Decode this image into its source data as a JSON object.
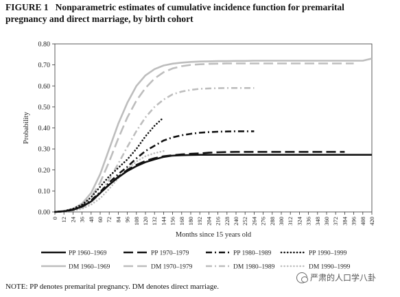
{
  "figure": {
    "label": "FIGURE 1",
    "title": "Nonparametric estimates of cumulative incidence function for premarital pregnancy and direct marriage, by birth cohort",
    "note": "NOTE: PP denotes premarital pregnancy. DM denotes direct marriage.",
    "watermark": "严肃的人口学八卦"
  },
  "chart_data": {
    "type": "line",
    "xlabel": "Months since 15 years old",
    "ylabel": "Probability",
    "xlim": [
      0,
      420
    ],
    "ylim": [
      0,
      0.8
    ],
    "xticks": [
      0,
      12,
      24,
      36,
      48,
      60,
      72,
      84,
      96,
      108,
      120,
      132,
      144,
      156,
      168,
      180,
      192,
      204,
      216,
      228,
      240,
      252,
      264,
      276,
      288,
      300,
      312,
      324,
      336,
      348,
      360,
      372,
      384,
      396,
      408,
      420
    ],
    "yticks": [
      "0.00",
      "0.10",
      "0.20",
      "0.30",
      "0.40",
      "0.50",
      "0.60",
      "0.70",
      "0.80"
    ],
    "grid": false,
    "legend_position": "bottom",
    "series": [
      {
        "name": "PP 1960–1969",
        "color": "#111111",
        "style": "solid",
        "x": [
          0,
          12,
          24,
          36,
          48,
          60,
          72,
          84,
          96,
          108,
          120,
          132,
          144,
          156,
          168,
          180,
          192,
          204,
          216,
          228,
          240,
          252,
          264,
          276,
          288,
          300,
          312,
          324,
          336,
          348,
          360,
          372,
          384,
          396,
          408,
          420
        ],
        "y": [
          0,
          0.003,
          0.01,
          0.025,
          0.05,
          0.09,
          0.13,
          0.165,
          0.195,
          0.218,
          0.237,
          0.25,
          0.262,
          0.268,
          0.27,
          0.271,
          0.272,
          0.272,
          0.272,
          0.272,
          0.272,
          0.272,
          0.272,
          0.272,
          0.272,
          0.272,
          0.272,
          0.272,
          0.272,
          0.272,
          0.272,
          0.272,
          0.272,
          0.272,
          0.272,
          0.272
        ]
      },
      {
        "name": "PP 1970–1979",
        "color": "#111111",
        "style": "longdash",
        "x": [
          0,
          12,
          24,
          36,
          48,
          60,
          72,
          84,
          96,
          108,
          120,
          132,
          144,
          156,
          168,
          180,
          192,
          204,
          216,
          228,
          240,
          252,
          264,
          276,
          288,
          300,
          312,
          324,
          336,
          348,
          360,
          372,
          384
        ],
        "y": [
          0,
          0.003,
          0.01,
          0.025,
          0.05,
          0.09,
          0.13,
          0.168,
          0.2,
          0.224,
          0.243,
          0.256,
          0.265,
          0.27,
          0.274,
          0.277,
          0.279,
          0.282,
          0.284,
          0.285,
          0.286,
          0.286,
          0.286,
          0.286,
          0.286,
          0.286,
          0.286,
          0.286,
          0.286,
          0.286,
          0.286,
          0.286,
          0.286
        ]
      },
      {
        "name": "PP 1980–1989",
        "color": "#111111",
        "style": "dashdot",
        "x": [
          0,
          12,
          24,
          36,
          48,
          60,
          72,
          84,
          96,
          108,
          120,
          132,
          144,
          156,
          168,
          180,
          192,
          204,
          216,
          228,
          240,
          252,
          264
        ],
        "y": [
          0,
          0.003,
          0.012,
          0.028,
          0.055,
          0.095,
          0.14,
          0.18,
          0.215,
          0.255,
          0.29,
          0.315,
          0.34,
          0.355,
          0.365,
          0.372,
          0.377,
          0.38,
          0.382,
          0.383,
          0.384,
          0.384,
          0.384
        ]
      },
      {
        "name": "PP 1990–1999",
        "color": "#111111",
        "style": "dotted",
        "x": [
          0,
          12,
          24,
          36,
          48,
          60,
          72,
          84,
          96,
          108,
          120,
          132,
          144
        ],
        "y": [
          0,
          0.004,
          0.015,
          0.035,
          0.07,
          0.12,
          0.17,
          0.21,
          0.25,
          0.3,
          0.36,
          0.41,
          0.45
        ]
      },
      {
        "name": "DM 1960–1969",
        "color": "#bdbdbd",
        "style": "solid",
        "x": [
          0,
          12,
          24,
          36,
          48,
          60,
          72,
          84,
          96,
          108,
          120,
          132,
          144,
          156,
          168,
          180,
          192,
          204,
          216,
          228,
          240,
          252,
          264,
          276,
          288,
          300,
          312,
          324,
          336,
          348,
          360,
          372,
          384,
          396,
          408,
          420
        ],
        "y": [
          0,
          0.005,
          0.015,
          0.04,
          0.09,
          0.18,
          0.3,
          0.42,
          0.52,
          0.6,
          0.65,
          0.68,
          0.697,
          0.706,
          0.711,
          0.714,
          0.716,
          0.717,
          0.718,
          0.718,
          0.719,
          0.719,
          0.72,
          0.72,
          0.72,
          0.72,
          0.72,
          0.72,
          0.72,
          0.72,
          0.72,
          0.72,
          0.72,
          0.72,
          0.72,
          0.73
        ]
      },
      {
        "name": "DM 1970–1979",
        "color": "#bdbdbd",
        "style": "longdash",
        "x": [
          0,
          12,
          24,
          36,
          48,
          60,
          72,
          84,
          96,
          108,
          120,
          132,
          144,
          156,
          168,
          180,
          192,
          204,
          216,
          228,
          240,
          252,
          264,
          276,
          288,
          300,
          312,
          324,
          336,
          348,
          360,
          372,
          384,
          396
        ],
        "y": [
          0,
          0.004,
          0.012,
          0.03,
          0.07,
          0.14,
          0.24,
          0.35,
          0.45,
          0.53,
          0.59,
          0.635,
          0.665,
          0.683,
          0.694,
          0.7,
          0.703,
          0.705,
          0.706,
          0.707,
          0.707,
          0.707,
          0.707,
          0.707,
          0.707,
          0.707,
          0.707,
          0.707,
          0.707,
          0.707,
          0.707,
          0.707,
          0.707,
          0.707
        ]
      },
      {
        "name": "DM 1980–1989",
        "color": "#bdbdbd",
        "style": "dashdot",
        "x": [
          0,
          12,
          24,
          36,
          48,
          60,
          72,
          84,
          96,
          108,
          120,
          132,
          144,
          156,
          168,
          180,
          192,
          204,
          216,
          228,
          240,
          252,
          264
        ],
        "y": [
          0,
          0.003,
          0.008,
          0.02,
          0.045,
          0.09,
          0.155,
          0.23,
          0.31,
          0.385,
          0.45,
          0.5,
          0.535,
          0.56,
          0.573,
          0.581,
          0.586,
          0.588,
          0.589,
          0.59,
          0.59,
          0.59,
          0.59
        ]
      },
      {
        "name": "DM 1990–1999",
        "color": "#bdbdbd",
        "style": "dotted",
        "x": [
          0,
          12,
          24,
          36,
          48,
          60,
          72,
          84,
          96,
          108,
          120,
          132,
          144
        ],
        "y": [
          0,
          0.002,
          0.006,
          0.015,
          0.035,
          0.065,
          0.11,
          0.16,
          0.205,
          0.24,
          0.265,
          0.28,
          0.29
        ]
      }
    ]
  }
}
